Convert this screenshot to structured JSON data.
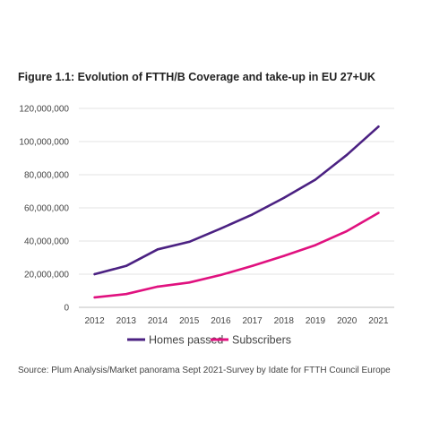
{
  "figure": {
    "title": "Figure 1.1: Evolution of FTTH/B Coverage and take-up in EU 27+UK",
    "source": "Source: Plum Analysis/Market panorama Sept 2021-Survey by Idate for FTTH Council Europe"
  },
  "chart_data": {
    "type": "line",
    "title": "Figure 1.1: Evolution of FTTH/B Coverage and take-up in EU 27+UK",
    "xlabel": "",
    "ylabel": "",
    "x": [
      "2012",
      "2013",
      "2014",
      "2015",
      "2016",
      "2017",
      "2018",
      "2019",
      "2020",
      "2021"
    ],
    "ylim": [
      0,
      120000000
    ],
    "yticks": [
      0,
      20000000,
      40000000,
      60000000,
      80000000,
      100000000,
      120000000
    ],
    "ytick_labels": [
      "0",
      "20,000,000",
      "40,000,000",
      "60,000,000",
      "80,000,000",
      "100,000,000",
      "120,000,000"
    ],
    "grid": true,
    "legend": "bottom",
    "series": [
      {
        "name": "Homes passed",
        "color": "#4b2182",
        "values": [
          20000000,
          25000000,
          35000000,
          39500000,
          47500000,
          56000000,
          66000000,
          77000000,
          92000000,
          109000000
        ]
      },
      {
        "name": "Subscribers",
        "color": "#e0117f",
        "values": [
          6000000,
          8000000,
          12500000,
          15000000,
          19500000,
          25000000,
          31000000,
          37500000,
          46000000,
          57000000
        ]
      }
    ]
  }
}
